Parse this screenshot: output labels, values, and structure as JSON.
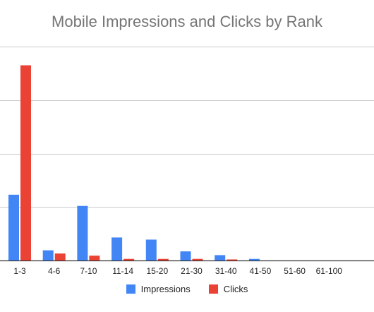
{
  "chart_data": {
    "type": "bar",
    "title": "Mobile Impressions and Clicks by Rank",
    "xlabel": "",
    "ylabel": "",
    "categories": [
      "1-3",
      "4-6",
      "7-10",
      "11-14",
      "15-20",
      "21-30",
      "31-40",
      "41-50",
      "51-60",
      "61-100"
    ],
    "series": [
      {
        "name": "Impressions",
        "color": "#4285f4",
        "values": [
          12.3,
          1.9,
          10.2,
          4.3,
          3.9,
          1.7,
          1.0,
          0.3,
          0,
          0
        ]
      },
      {
        "name": "Clicks",
        "color": "#ea4335",
        "values": [
          36.5,
          1.3,
          0.9,
          0.3,
          0.3,
          0.3,
          0.2,
          0,
          0,
          0
        ]
      }
    ],
    "ylim": [
      0,
      40
    ],
    "gridlines": [
      0,
      10,
      20,
      30,
      40
    ],
    "grid": true,
    "legend_position": "bottom"
  }
}
